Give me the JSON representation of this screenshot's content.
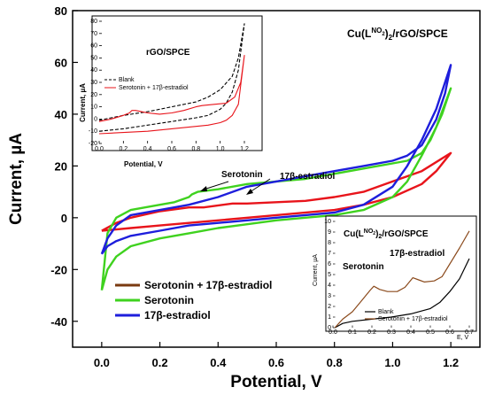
{
  "chart_data": [
    {
      "type": "line",
      "xlabel": "Potential, V",
      "ylabel": "Current, µA",
      "xlim": [
        -0.1,
        1.3
      ],
      "ylim": [
        -50,
        80
      ],
      "xticks": [
        "0.0",
        "0.2",
        "0.4",
        "0.6",
        "0.8",
        "1.0",
        "1.2"
      ],
      "yticks": [
        "-40",
        "-20",
        "0",
        "20",
        "40",
        "60",
        "80"
      ],
      "label": "Cu(L",
      "label_sup": "NO",
      "label_sub": "2",
      "label_tail": ")",
      "label_sub2": "2",
      "label_end": "/rGO/SPCE",
      "legend_placement": "bottom-left",
      "annotations": [
        {
          "text": "Serotonin",
          "x": 0.31,
          "y": 9
        },
        {
          "text": "17β-estradiol",
          "x": 0.52,
          "y": 8
        }
      ],
      "series": [
        {
          "name": "Serotonin + 17β-estradiol",
          "color": "#e8141b",
          "legend_color": "#7a3a10",
          "forward": [
            [
              0.0,
              -5
            ],
            [
              0.1,
              -4
            ],
            [
              0.2,
              -3
            ],
            [
              0.4,
              -1
            ],
            [
              0.6,
              1
            ],
            [
              0.8,
              3
            ],
            [
              0.9,
              5
            ],
            [
              1.0,
              8
            ],
            [
              1.1,
              13
            ],
            [
              1.15,
              18
            ],
            [
              1.2,
              25
            ]
          ],
          "reverse": [
            [
              1.2,
              25
            ],
            [
              1.1,
              18
            ],
            [
              1.0,
              14
            ],
            [
              0.9,
              10
            ],
            [
              0.8,
              8
            ],
            [
              0.7,
              6.5
            ],
            [
              0.6,
              6
            ],
            [
              0.5,
              5.5
            ],
            [
              0.45,
              5.5
            ],
            [
              0.35,
              4
            ],
            [
              0.3,
              4
            ],
            [
              0.2,
              2.5
            ],
            [
              0.1,
              0
            ],
            [
              0.05,
              -2
            ],
            [
              0.0,
              -5
            ]
          ]
        },
        {
          "name": "Serotonin",
          "color": "#3fd21f",
          "legend_color": "#3fd21f",
          "forward": [
            [
              0.0,
              -28
            ],
            [
              0.02,
              -20
            ],
            [
              0.05,
              -15
            ],
            [
              0.1,
              -11
            ],
            [
              0.2,
              -8
            ],
            [
              0.3,
              -6
            ],
            [
              0.4,
              -4
            ],
            [
              0.5,
              -2.5
            ],
            [
              0.6,
              -1
            ],
            [
              0.7,
              0
            ],
            [
              0.8,
              1
            ],
            [
              0.9,
              3
            ],
            [
              1.0,
              8
            ],
            [
              1.05,
              14
            ],
            [
              1.1,
              24
            ],
            [
              1.15,
              35
            ],
            [
              1.2,
              50
            ]
          ],
          "reverse": [
            [
              1.2,
              50
            ],
            [
              1.17,
              40
            ],
            [
              1.13,
              30
            ],
            [
              1.1,
              25
            ],
            [
              1.05,
              22
            ],
            [
              1.0,
              21
            ],
            [
              0.9,
              19
            ],
            [
              0.8,
              17
            ],
            [
              0.7,
              15
            ],
            [
              0.6,
              14
            ],
            [
              0.5,
              13
            ],
            [
              0.4,
              11
            ],
            [
              0.33,
              10
            ],
            [
              0.31,
              9
            ],
            [
              0.3,
              8
            ],
            [
              0.25,
              6
            ],
            [
              0.2,
              5
            ],
            [
              0.1,
              3
            ],
            [
              0.05,
              0
            ],
            [
              0.02,
              -6
            ],
            [
              0.0,
              -28
            ]
          ]
        },
        {
          "name": "17β-estradiol",
          "color": "#1e1edc",
          "legend_color": "#1e1edc",
          "forward": [
            [
              0.0,
              -14
            ],
            [
              0.02,
              -11
            ],
            [
              0.05,
              -9
            ],
            [
              0.1,
              -7
            ],
            [
              0.2,
              -5
            ],
            [
              0.3,
              -3
            ],
            [
              0.4,
              -2
            ],
            [
              0.5,
              -1
            ],
            [
              0.6,
              0
            ],
            [
              0.7,
              1
            ],
            [
              0.8,
              2
            ],
            [
              0.9,
              5
            ],
            [
              1.0,
              12
            ],
            [
              1.05,
              20
            ],
            [
              1.1,
              30
            ],
            [
              1.15,
              42
            ],
            [
              1.2,
              59
            ]
          ],
          "reverse": [
            [
              1.2,
              59
            ],
            [
              1.18,
              48
            ],
            [
              1.15,
              38
            ],
            [
              1.1,
              28
            ],
            [
              1.05,
              24
            ],
            [
              1.0,
              22
            ],
            [
              0.9,
              20
            ],
            [
              0.8,
              18
            ],
            [
              0.7,
              16
            ],
            [
              0.6,
              14
            ],
            [
              0.5,
              12
            ],
            [
              0.4,
              8
            ],
            [
              0.3,
              5
            ],
            [
              0.2,
              3
            ],
            [
              0.1,
              1
            ],
            [
              0.05,
              -3
            ],
            [
              0.02,
              -8
            ],
            [
              0.0,
              -14
            ]
          ]
        }
      ]
    },
    {
      "type": "line",
      "title": "rGO/SPCE",
      "xlabel": "Potential, V",
      "ylabel": "Current, µA",
      "xlim": [
        0.0,
        1.2
      ],
      "ylim": [
        -20,
        80
      ],
      "xticks": [
        "0.0",
        "0.2",
        "0.4",
        "0.6",
        "0.8",
        "1.0",
        "1.2"
      ],
      "yticks": [
        "-20",
        "-10",
        "0",
        "10",
        "20",
        "30",
        "40",
        "50",
        "60",
        "70",
        "80"
      ],
      "series": [
        {
          "name": "Blank",
          "color": "#000000",
          "dashed": true,
          "forward": [
            [
              0.0,
              -10
            ],
            [
              0.2,
              -8
            ],
            [
              0.4,
              -5
            ],
            [
              0.6,
              -2
            ],
            [
              0.8,
              1
            ],
            [
              0.9,
              3
            ],
            [
              1.0,
              8
            ],
            [
              1.05,
              13
            ],
            [
              1.1,
              22
            ],
            [
              1.15,
              40
            ],
            [
              1.2,
              78
            ]
          ],
          "reverse": [
            [
              1.2,
              78
            ],
            [
              1.15,
              50
            ],
            [
              1.1,
              35
            ],
            [
              1.0,
              24
            ],
            [
              0.9,
              18
            ],
            [
              0.8,
              14
            ],
            [
              0.6,
              10
            ],
            [
              0.4,
              6
            ],
            [
              0.2,
              3
            ],
            [
              0.1,
              1
            ],
            [
              0.0,
              -1
            ]
          ]
        },
        {
          "name": "Serotonin + 17β-estradiol",
          "color": "#e8141b",
          "dashed": false,
          "forward": [
            [
              0.0,
              -12
            ],
            [
              0.2,
              -11
            ],
            [
              0.4,
              -10
            ],
            [
              0.6,
              -8
            ],
            [
              0.8,
              -6
            ],
            [
              0.9,
              -5
            ],
            [
              1.0,
              -3
            ],
            [
              1.05,
              -1
            ],
            [
              1.1,
              3
            ],
            [
              1.15,
              12
            ],
            [
              1.2,
              52
            ]
          ],
          "reverse": [
            [
              1.2,
              52
            ],
            [
              1.17,
              30
            ],
            [
              1.12,
              18
            ],
            [
              1.05,
              13
            ],
            [
              0.95,
              12
            ],
            [
              0.85,
              11
            ],
            [
              0.8,
              10
            ],
            [
              0.7,
              7
            ],
            [
              0.6,
              5
            ],
            [
              0.5,
              4
            ],
            [
              0.4,
              5
            ],
            [
              0.35,
              6
            ],
            [
              0.3,
              7
            ],
            [
              0.27,
              7
            ],
            [
              0.25,
              5
            ],
            [
              0.2,
              3
            ],
            [
              0.1,
              0
            ],
            [
              0.0,
              -2
            ]
          ]
        }
      ]
    },
    {
      "type": "line",
      "label": "Cu(L",
      "label_sup": "NO",
      "label_sub": "2",
      "label_tail": ")",
      "label_sub2": "2",
      "label_end": "/rGO/SPCE",
      "xlabel": "E, V",
      "ylabel": "Current, µA",
      "xlim": [
        0.0,
        0.7
      ],
      "ylim": [
        0,
        10
      ],
      "xticks": [
        "0.0",
        "0.1",
        "0.2",
        "0.3",
        "0.4",
        "0.5",
        "0.6",
        "0.7"
      ],
      "yticks": [
        "0",
        "1",
        "2",
        "3",
        "4",
        "5",
        "6",
        "7",
        "8",
        "9",
        "10"
      ],
      "annotations": [
        {
          "text": "Serotonin",
          "x": 0.17,
          "y": 4.4
        },
        {
          "text": "17β-estradiol",
          "x": 0.41,
          "y": 6.5
        }
      ],
      "series": [
        {
          "name": "Blank",
          "color": "#000000",
          "points": [
            [
              0.01,
              0
            ],
            [
              0.03,
              0.2
            ],
            [
              0.05,
              0.4
            ],
            [
              0.1,
              0.6
            ],
            [
              0.2,
              0.8
            ],
            [
              0.3,
              1.0
            ],
            [
              0.4,
              1.3
            ],
            [
              0.5,
              1.8
            ],
            [
              0.55,
              2.4
            ],
            [
              0.6,
              3.4
            ],
            [
              0.65,
              4.6
            ],
            [
              0.7,
              6.5
            ]
          ]
        },
        {
          "name": "Serotonin + 17β-estradiol",
          "color": "#8b4a1c",
          "points": [
            [
              0.01,
              0
            ],
            [
              0.03,
              0.4
            ],
            [
              0.05,
              0.8
            ],
            [
              0.1,
              1.5
            ],
            [
              0.15,
              2.6
            ],
            [
              0.19,
              3.5
            ],
            [
              0.21,
              3.9
            ],
            [
              0.24,
              3.6
            ],
            [
              0.28,
              3.4
            ],
            [
              0.33,
              3.4
            ],
            [
              0.37,
              3.8
            ],
            [
              0.41,
              4.7
            ],
            [
              0.44,
              4.5
            ],
            [
              0.47,
              4.3
            ],
            [
              0.52,
              4.4
            ],
            [
              0.56,
              4.8
            ],
            [
              0.6,
              6
            ],
            [
              0.65,
              7.5
            ],
            [
              0.7,
              9.1
            ]
          ]
        }
      ]
    }
  ]
}
